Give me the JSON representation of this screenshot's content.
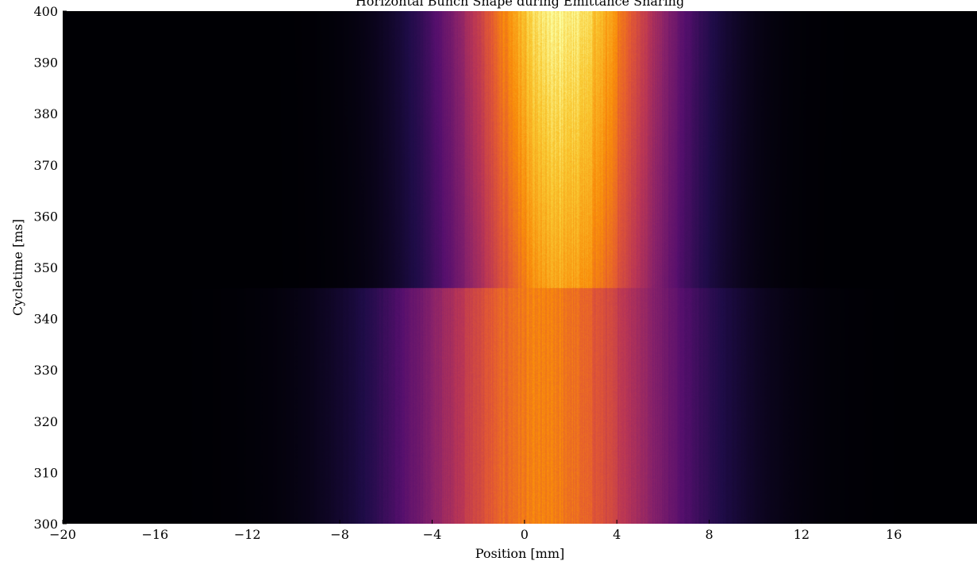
{
  "chart_data": {
    "type": "heatmap",
    "title": "Horizontal Bunch Shape during Emittance Sharing",
    "xlabel": "Position [mm]",
    "ylabel": "Cycletime [ms]",
    "xlim": [
      -20,
      19.6
    ],
    "ylim": [
      300,
      400
    ],
    "xticks": [
      -20,
      -16,
      -12,
      -8,
      -4,
      0,
      4,
      8,
      12,
      16
    ],
    "yticks": [
      300,
      310,
      320,
      330,
      340,
      350,
      360,
      370,
      380,
      390,
      400
    ],
    "colormap": "inferno",
    "grid": false,
    "transition_time_ms": 346,
    "profile_before": {
      "cycletime_ms": [
        300,
        346
      ],
      "center_mm": 0.8,
      "sigma_mm": 4.2,
      "peak_intensity": 0.72
    },
    "profile_after": {
      "cycletime_ms": [
        346,
        400
      ],
      "center_mm": 1.6,
      "sigma_mm": 3.3,
      "peak_intensity_start": 0.8,
      "peak_intensity_end": 0.97
    }
  }
}
